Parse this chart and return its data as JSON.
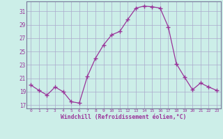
{
  "x": [
    0,
    1,
    2,
    3,
    4,
    5,
    6,
    7,
    8,
    9,
    10,
    11,
    12,
    13,
    14,
    15,
    16,
    17,
    18,
    19,
    20,
    21,
    22,
    23
  ],
  "y": [
    20.0,
    19.2,
    18.5,
    19.7,
    19.0,
    17.5,
    17.3,
    21.3,
    24.0,
    26.0,
    27.5,
    28.0,
    29.8,
    31.5,
    31.8,
    31.7,
    31.5,
    28.7,
    23.2,
    21.2,
    19.3,
    20.3,
    19.7,
    19.2
  ],
  "line_color": "#993399",
  "marker": "+",
  "marker_color": "#993399",
  "bg_color": "#cceee8",
  "grid_color": "#aaaacc",
  "xlabel": "Windchill (Refroidissement éolien,°C)",
  "xlabel_color": "#993399",
  "tick_color": "#993399",
  "ylabel_ticks": [
    17,
    19,
    21,
    23,
    25,
    27,
    29,
    31
  ],
  "xlabel_ticks": [
    0,
    1,
    2,
    3,
    4,
    5,
    6,
    7,
    8,
    9,
    10,
    11,
    12,
    13,
    14,
    15,
    16,
    17,
    18,
    19,
    20,
    21,
    22,
    23
  ],
  "ylim": [
    16.5,
    32.5
  ],
  "xlim": [
    -0.5,
    23.5
  ],
  "figsize": [
    3.2,
    2.0
  ],
  "dpi": 100
}
